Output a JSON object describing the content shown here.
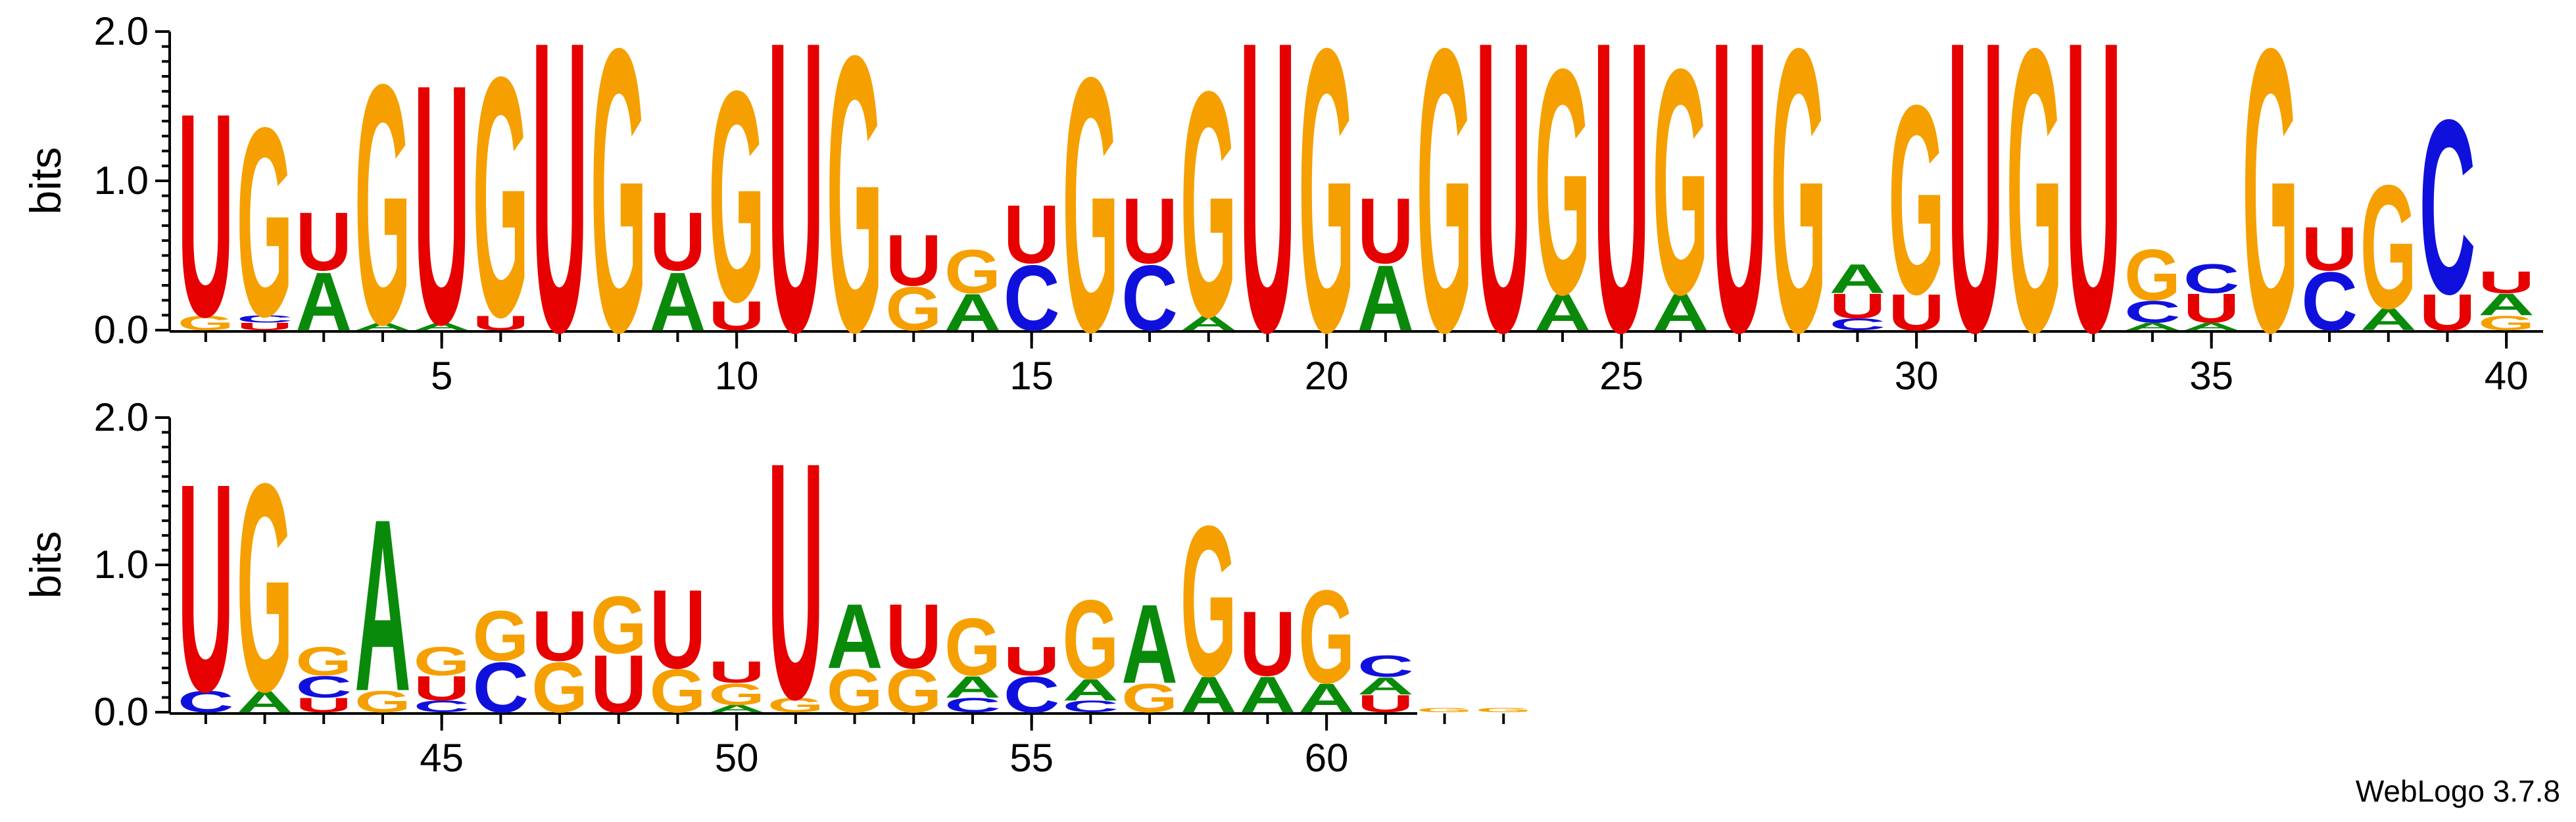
{
  "chart_data": {
    "type": "sequence-logo",
    "tool_credit": "WebLogo 3.7.8",
    "ylabel": "bits",
    "y_ticks": [
      "0.0",
      "1.0",
      "2.0"
    ],
    "ylim": [
      0,
      2
    ],
    "colors": {
      "A": "#0a8a0a",
      "C": "#1010dd",
      "G": "#f5a000",
      "U": "#e60000"
    },
    "rows": [
      {
        "start": 1,
        "end": 40,
        "x_ticks": [
          "5",
          "10",
          "15",
          "20",
          "25",
          "30",
          "35",
          "40"
        ]
      },
      {
        "start": 41,
        "end": 63,
        "x_ticks": [
          "45",
          "50",
          "55",
          "60"
        ]
      }
    ],
    "positions": [
      {
        "pos": 1,
        "letters": [
          [
            "G",
            0.1
          ],
          [
            "U",
            1.4
          ]
        ]
      },
      {
        "pos": 2,
        "letters": [
          [
            "U",
            0.05
          ],
          [
            "C",
            0.05
          ],
          [
            "G",
            1.3
          ]
        ]
      },
      {
        "pos": 3,
        "letters": [
          [
            "A",
            0.4
          ],
          [
            "U",
            0.4
          ]
        ]
      },
      {
        "pos": 4,
        "letters": [
          [
            "A",
            0.05
          ],
          [
            "G",
            1.65
          ]
        ]
      },
      {
        "pos": 5,
        "letters": [
          [
            "A",
            0.05
          ],
          [
            "U",
            1.65
          ]
        ]
      },
      {
        "pos": 6,
        "letters": [
          [
            "U",
            0.1
          ],
          [
            "G",
            1.65
          ]
        ]
      },
      {
        "pos": 7,
        "letters": [
          [
            "U",
            2.0
          ]
        ]
      },
      {
        "pos": 8,
        "letters": [
          [
            "G",
            1.95
          ]
        ]
      },
      {
        "pos": 9,
        "letters": [
          [
            "A",
            0.4
          ],
          [
            "U",
            0.4
          ]
        ]
      },
      {
        "pos": 10,
        "letters": [
          [
            "U",
            0.2
          ],
          [
            "G",
            1.45
          ]
        ]
      },
      {
        "pos": 11,
        "letters": [
          [
            "U",
            2.0
          ]
        ]
      },
      {
        "pos": 12,
        "letters": [
          [
            "G",
            1.9
          ]
        ]
      },
      {
        "pos": 13,
        "letters": [
          [
            "G",
            0.3
          ],
          [
            "U",
            0.35
          ]
        ]
      },
      {
        "pos": 14,
        "letters": [
          [
            "A",
            0.25
          ],
          [
            "G",
            0.3
          ]
        ]
      },
      {
        "pos": 15,
        "letters": [
          [
            "C",
            0.45
          ],
          [
            "U",
            0.4
          ]
        ]
      },
      {
        "pos": 16,
        "letters": [
          [
            "G",
            1.75
          ]
        ]
      },
      {
        "pos": 17,
        "letters": [
          [
            "C",
            0.45
          ],
          [
            "U",
            0.45
          ]
        ]
      },
      {
        "pos": 18,
        "letters": [
          [
            "A",
            0.1
          ],
          [
            "G",
            1.55
          ]
        ]
      },
      {
        "pos": 19,
        "letters": [
          [
            "U",
            2.0
          ]
        ]
      },
      {
        "pos": 20,
        "letters": [
          [
            "G",
            1.95
          ]
        ]
      },
      {
        "pos": 21,
        "letters": [
          [
            "A",
            0.45
          ],
          [
            "U",
            0.45
          ]
        ]
      },
      {
        "pos": 22,
        "letters": [
          [
            "G",
            1.95
          ]
        ]
      },
      {
        "pos": 23,
        "letters": [
          [
            "U",
            2.0
          ]
        ]
      },
      {
        "pos": 24,
        "letters": [
          [
            "A",
            0.25
          ],
          [
            "G",
            1.55
          ]
        ]
      },
      {
        "pos": 25,
        "letters": [
          [
            "U",
            2.0
          ]
        ]
      },
      {
        "pos": 26,
        "letters": [
          [
            "A",
            0.25
          ],
          [
            "G",
            1.55
          ]
        ]
      },
      {
        "pos": 27,
        "letters": [
          [
            "U",
            2.0
          ]
        ]
      },
      {
        "pos": 28,
        "letters": [
          [
            "G",
            1.95
          ]
        ]
      },
      {
        "pos": 29,
        "letters": [
          [
            "C",
            0.08
          ],
          [
            "U",
            0.17
          ],
          [
            "A",
            0.2
          ]
        ]
      },
      {
        "pos": 30,
        "letters": [
          [
            "U",
            0.25
          ],
          [
            "G",
            1.3
          ]
        ]
      },
      {
        "pos": 31,
        "letters": [
          [
            "U",
            2.0
          ]
        ]
      },
      {
        "pos": 32,
        "letters": [
          [
            "G",
            1.95
          ]
        ]
      },
      {
        "pos": 33,
        "letters": [
          [
            "U",
            2.0
          ]
        ]
      },
      {
        "pos": 34,
        "letters": [
          [
            "A",
            0.05
          ],
          [
            "C",
            0.15
          ],
          [
            "G",
            0.35
          ]
        ]
      },
      {
        "pos": 35,
        "letters": [
          [
            "A",
            0.05
          ],
          [
            "U",
            0.2
          ],
          [
            "C",
            0.2
          ]
        ]
      },
      {
        "pos": 36,
        "letters": [
          [
            "G",
            1.95
          ]
        ]
      },
      {
        "pos": 37,
        "letters": [
          [
            "C",
            0.4
          ],
          [
            "U",
            0.3
          ]
        ]
      },
      {
        "pos": 38,
        "letters": [
          [
            "A",
            0.15
          ],
          [
            "G",
            0.85
          ]
        ]
      },
      {
        "pos": 39,
        "letters": [
          [
            "U",
            0.25
          ],
          [
            "C",
            1.2
          ]
        ]
      },
      {
        "pos": 40,
        "letters": [
          [
            "G",
            0.1
          ],
          [
            "A",
            0.15
          ],
          [
            "U",
            0.15
          ]
        ]
      },
      {
        "pos": 41,
        "letters": [
          [
            "C",
            0.15
          ],
          [
            "U",
            1.45
          ]
        ]
      },
      {
        "pos": 42,
        "letters": [
          [
            "A",
            0.15
          ],
          [
            "G",
            1.45
          ]
        ]
      },
      {
        "pos": 43,
        "letters": [
          [
            "U",
            0.1
          ],
          [
            "C",
            0.15
          ],
          [
            "G",
            0.2
          ]
        ]
      },
      {
        "pos": 44,
        "letters": [
          [
            "G",
            0.15
          ],
          [
            "A",
            1.2
          ]
        ]
      },
      {
        "pos": 45,
        "letters": [
          [
            "C",
            0.08
          ],
          [
            "U",
            0.17
          ],
          [
            "G",
            0.2
          ]
        ]
      },
      {
        "pos": 46,
        "letters": [
          [
            "C",
            0.35
          ],
          [
            "G",
            0.35
          ]
        ]
      },
      {
        "pos": 47,
        "letters": [
          [
            "G",
            0.35
          ],
          [
            "U",
            0.35
          ]
        ]
      },
      {
        "pos": 48,
        "letters": [
          [
            "U",
            0.4
          ],
          [
            "G",
            0.4
          ]
        ]
      },
      {
        "pos": 49,
        "letters": [
          [
            "G",
            0.3
          ],
          [
            "U",
            0.55
          ]
        ]
      },
      {
        "pos": 50,
        "letters": [
          [
            "A",
            0.05
          ],
          [
            "G",
            0.15
          ],
          [
            "U",
            0.15
          ]
        ]
      },
      {
        "pos": 51,
        "letters": [
          [
            "G",
            0.1
          ],
          [
            "U",
            1.65
          ]
        ]
      },
      {
        "pos": 52,
        "letters": [
          [
            "G",
            0.3
          ],
          [
            "A",
            0.45
          ]
        ]
      },
      {
        "pos": 53,
        "letters": [
          [
            "G",
            0.3
          ],
          [
            "U",
            0.45
          ]
        ]
      },
      {
        "pos": 54,
        "letters": [
          [
            "C",
            0.1
          ],
          [
            "A",
            0.15
          ],
          [
            "G",
            0.4
          ]
        ]
      },
      {
        "pos": 55,
        "letters": [
          [
            "C",
            0.25
          ],
          [
            "U",
            0.2
          ]
        ]
      },
      {
        "pos": 56,
        "letters": [
          [
            "C",
            0.08
          ],
          [
            "A",
            0.15
          ],
          [
            "G",
            0.55
          ]
        ]
      },
      {
        "pos": 57,
        "letters": [
          [
            "G",
            0.2
          ],
          [
            "A",
            0.55
          ]
        ]
      },
      {
        "pos": 58,
        "letters": [
          [
            "A",
            0.25
          ],
          [
            "G",
            1.05
          ]
        ]
      },
      {
        "pos": 59,
        "letters": [
          [
            "A",
            0.25
          ],
          [
            "U",
            0.45
          ]
        ]
      },
      {
        "pos": 60,
        "letters": [
          [
            "A",
            0.2
          ],
          [
            "G",
            0.65
          ]
        ]
      },
      {
        "pos": 61,
        "letters": [
          [
            "U",
            0.12
          ],
          [
            "A",
            0.12
          ],
          [
            "C",
            0.15
          ]
        ]
      },
      {
        "pos": 62,
        "letters": [
          [
            "G",
            0.03
          ]
        ]
      },
      {
        "pos": 63,
        "letters": [
          [
            "G",
            0.03
          ]
        ]
      }
    ]
  }
}
